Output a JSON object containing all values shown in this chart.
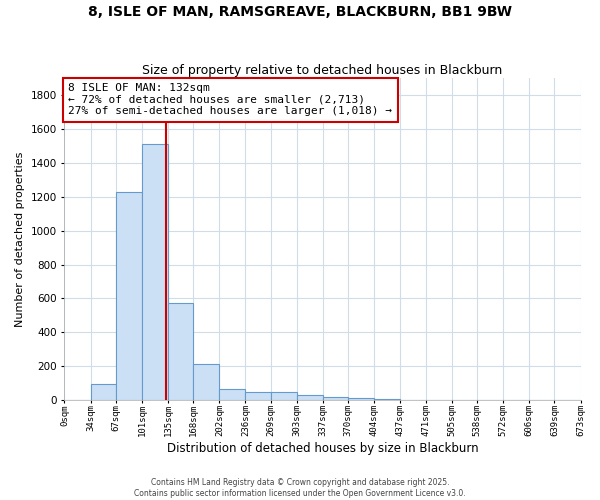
{
  "title1": "8, ISLE OF MAN, RAMSGREAVE, BLACKBURN, BB1 9BW",
  "title2": "Size of property relative to detached houses in Blackburn",
  "xlabel": "Distribution of detached houses by size in Blackburn",
  "ylabel": "Number of detached properties",
  "bin_edges": [
    0,
    34,
    67,
    101,
    135,
    168,
    202,
    236,
    269,
    303,
    337,
    370,
    404,
    437,
    471,
    505,
    538,
    572,
    606,
    639,
    673
  ],
  "bar_heights": [
    0,
    95,
    1230,
    1510,
    570,
    210,
    65,
    50,
    45,
    30,
    20,
    10,
    5,
    2,
    1,
    0,
    0,
    0,
    0,
    0
  ],
  "bar_color": "#cce0f5",
  "bar_edge_color": "#6699cc",
  "bg_color": "#ffffff",
  "grid_color": "#d0dce8",
  "red_line_x": 132,
  "annotation_title": "8 ISLE OF MAN: 132sqm",
  "annotation_line2": "← 72% of detached houses are smaller (2,713)",
  "annotation_line3": "27% of semi-detached houses are larger (1,018) →",
  "annotation_box_color": "#ffffff",
  "annotation_box_edge": "#cc0000",
  "ylim": [
    0,
    1900
  ],
  "yticks": [
    0,
    200,
    400,
    600,
    800,
    1000,
    1200,
    1400,
    1600,
    1800
  ],
  "tick_labels": [
    "0sqm",
    "34sqm",
    "67sqm",
    "101sqm",
    "135sqm",
    "168sqm",
    "202sqm",
    "236sqm",
    "269sqm",
    "303sqm",
    "337sqm",
    "370sqm",
    "404sqm",
    "437sqm",
    "471sqm",
    "505sqm",
    "538sqm",
    "572sqm",
    "606sqm",
    "639sqm",
    "673sqm"
  ],
  "footer1": "Contains HM Land Registry data © Crown copyright and database right 2025.",
  "footer2": "Contains public sector information licensed under the Open Government Licence v3.0."
}
